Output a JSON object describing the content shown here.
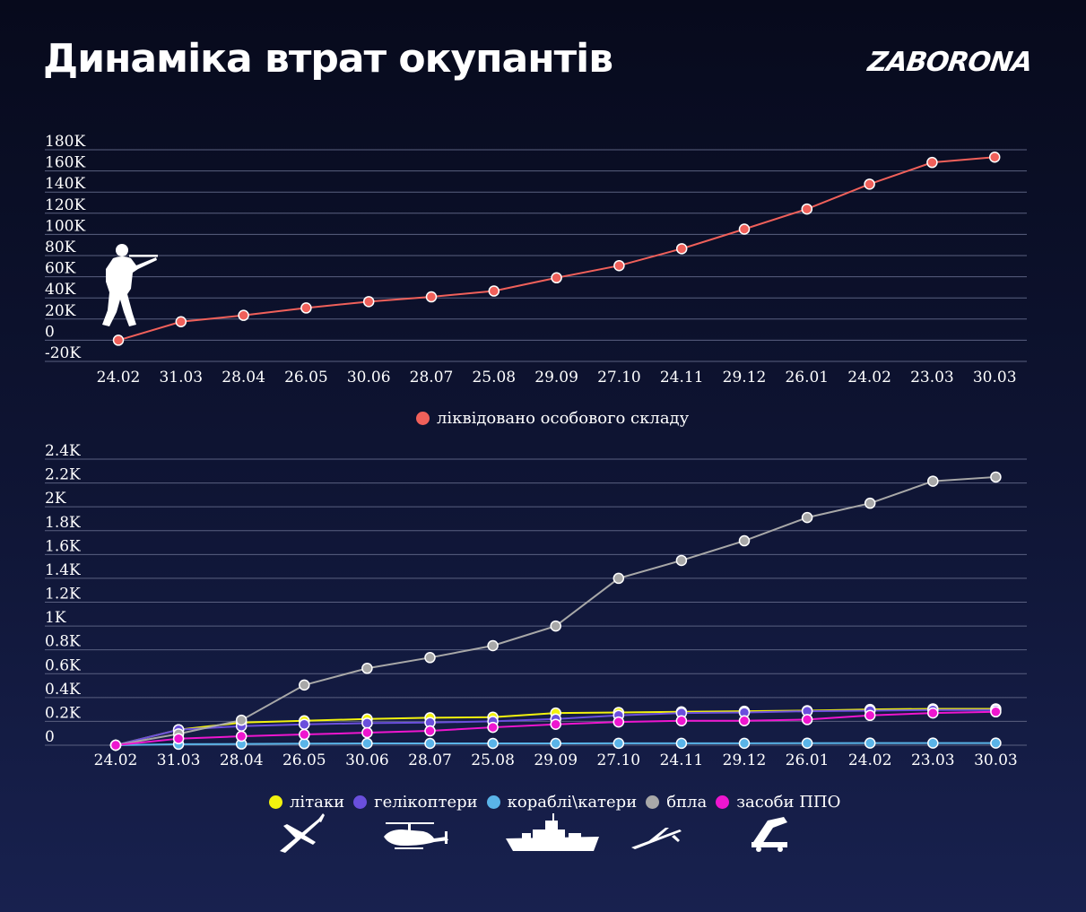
{
  "header": {
    "title": "Динаміка втрат окупантів",
    "logo": "ZABORONA"
  },
  "chart_data": [
    {
      "type": "line",
      "categories": [
        "24.02",
        "31.03",
        "28.04",
        "26.05",
        "30.06",
        "28.07",
        "25.08",
        "29.09",
        "27.10",
        "24.11",
        "29.12",
        "26.01",
        "24.02",
        "23.03",
        "30.03"
      ],
      "yticks": [
        "-20K",
        "0",
        "20K",
        "40K",
        "60K",
        "80K",
        "100K",
        "120K",
        "140K",
        "160K",
        "180K"
      ],
      "ylim": [
        -20000,
        180000
      ],
      "series": [
        {
          "name": "ліквідовано особового складу",
          "color": "#f0605a",
          "values": [
            0,
            17500,
            23500,
            30500,
            36500,
            41000,
            46500,
            59000,
            70500,
            86500,
            105000,
            124000,
            147500,
            168000,
            173000
          ]
        }
      ],
      "icon": "soldier-icon"
    },
    {
      "type": "line",
      "categories": [
        "24.02",
        "31.03",
        "28.04",
        "26.05",
        "30.06",
        "28.07",
        "25.08",
        "29.09",
        "27.10",
        "24.11",
        "29.12",
        "26.01",
        "24.02",
        "23.03",
        "30.03"
      ],
      "yticks": [
        "0",
        "0.2K",
        "0.4K",
        "0.6K",
        "0.8K",
        "1K",
        "1.2K",
        "1.4K",
        "1.6K",
        "1.8K",
        "2K",
        "2.2K",
        "2.4K"
      ],
      "ylim": [
        0,
        2400
      ],
      "series": [
        {
          "name": "літаки",
          "color": "#f2f20e",
          "values": [
            0,
            130,
            190,
            205,
            220,
            230,
            235,
            270,
            275,
            280,
            285,
            290,
            300,
            305,
            305
          ]
        },
        {
          "name": "гелікоптери",
          "color": "#6a4fdc",
          "values": [
            0,
            130,
            160,
            175,
            185,
            190,
            200,
            220,
            250,
            270,
            275,
            285,
            290,
            295,
            295
          ]
        },
        {
          "name": "кораблі\\катери",
          "color": "#5ab4e8",
          "values": [
            0,
            8,
            10,
            13,
            15,
            15,
            15,
            15,
            16,
            16,
            16,
            17,
            18,
            18,
            18
          ]
        },
        {
          "name": "бпла",
          "color": "#a8a8a8",
          "values": [
            0,
            95,
            210,
            505,
            645,
            735,
            835,
            1000,
            1400,
            1550,
            1715,
            1910,
            2030,
            2215,
            2250
          ]
        },
        {
          "name": "засоби ППО",
          "color": "#ee16cf",
          "values": [
            0,
            55,
            75,
            90,
            105,
            120,
            150,
            175,
            195,
            205,
            205,
            215,
            250,
            270,
            280
          ]
        }
      ],
      "icons": [
        "plane-icon",
        "helicopter-icon",
        "ship-icon",
        "drone-icon",
        "air-defense-icon"
      ]
    }
  ]
}
